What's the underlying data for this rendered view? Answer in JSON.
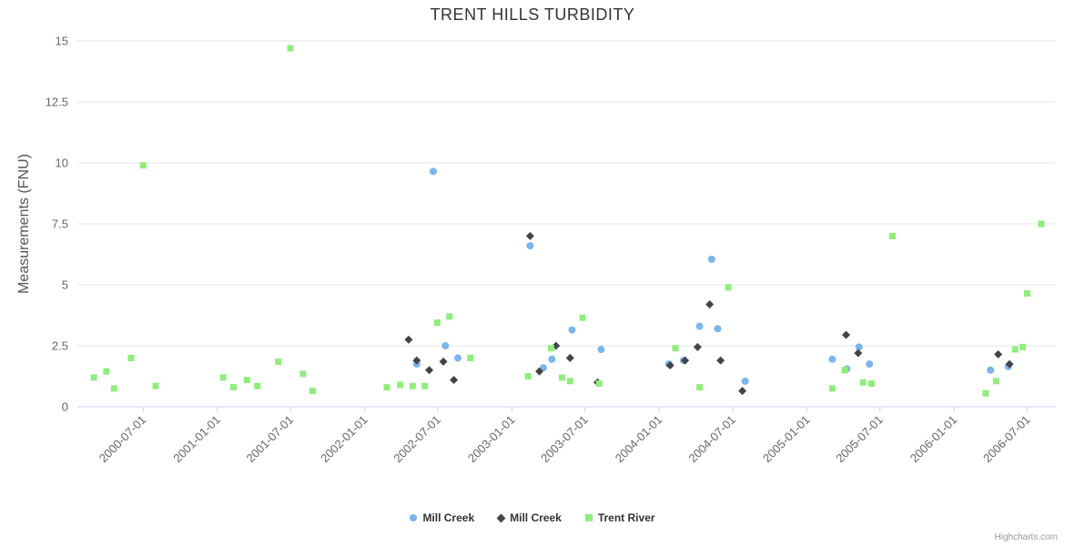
{
  "credit": "Highcharts.com",
  "chart_data": {
    "type": "scatter",
    "title": "TRENT HILLS TURBIDITY",
    "xlabel": "",
    "ylabel": "Measurements (FNU)",
    "ylim": [
      0,
      15
    ],
    "yticks": [
      0,
      2.5,
      5,
      7.5,
      10,
      12.5,
      15
    ],
    "ytick_labels": [
      "0",
      "2.5",
      "5",
      "7.5",
      "10",
      "12.5",
      "15"
    ],
    "xticks": [
      "2000-07-01",
      "2001-01-01",
      "2001-07-01",
      "2002-01-01",
      "2002-07-01",
      "2003-01-01",
      "2003-07-01",
      "2004-01-01",
      "2004-07-01",
      "2005-01-01",
      "2005-07-01",
      "2006-01-01",
      "2006-07-01"
    ],
    "x_domain": [
      "2000-01-20",
      "2006-09-10"
    ],
    "grid": true,
    "legend_position": "bottom",
    "colors": {
      "grid": "#e6e6e6",
      "axis": "#ccd6eb",
      "tick_text": "#666666",
      "title_text": "#333333",
      "credit_text": "#999999"
    },
    "series": [
      {
        "name": "Mill Creek",
        "marker": "circle",
        "color": "#7cb5ec",
        "points": [
          [
            "2002-05-10",
            1.75
          ],
          [
            "2002-06-20",
            9.65
          ],
          [
            "2002-07-20",
            2.5
          ],
          [
            "2002-08-20",
            2.0
          ],
          [
            "2003-02-15",
            6.6
          ],
          [
            "2003-03-20",
            1.6
          ],
          [
            "2003-04-10",
            1.95
          ],
          [
            "2003-05-30",
            3.15
          ],
          [
            "2003-08-10",
            2.35
          ],
          [
            "2004-01-25",
            1.75
          ],
          [
            "2004-03-01",
            1.9
          ],
          [
            "2004-04-10",
            3.3
          ],
          [
            "2004-05-10",
            6.05
          ],
          [
            "2004-05-25",
            3.2
          ],
          [
            "2004-08-01",
            1.05
          ],
          [
            "2005-03-05",
            1.95
          ],
          [
            "2005-04-10",
            1.55
          ],
          [
            "2005-05-10",
            2.45
          ],
          [
            "2005-06-05",
            1.75
          ],
          [
            "2006-04-01",
            1.5
          ],
          [
            "2006-05-15",
            1.65
          ]
        ]
      },
      {
        "name": "Mill Creek",
        "marker": "diamond",
        "color": "#434348",
        "points": [
          [
            "2002-04-20",
            2.75
          ],
          [
            "2002-05-10",
            1.9
          ],
          [
            "2002-06-10",
            1.5
          ],
          [
            "2002-07-15",
            1.85
          ],
          [
            "2002-08-10",
            1.1
          ],
          [
            "2003-02-15",
            7.0
          ],
          [
            "2003-03-10",
            1.45
          ],
          [
            "2003-04-20",
            2.5
          ],
          [
            "2003-05-25",
            2.0
          ],
          [
            "2003-08-01",
            1.0
          ],
          [
            "2004-01-28",
            1.7
          ],
          [
            "2004-03-05",
            1.9
          ],
          [
            "2004-04-05",
            2.45
          ],
          [
            "2004-05-05",
            4.2
          ],
          [
            "2004-06-01",
            1.9
          ],
          [
            "2004-07-25",
            0.65
          ],
          [
            "2005-04-08",
            2.95
          ],
          [
            "2005-05-08",
            2.2
          ],
          [
            "2006-04-20",
            2.15
          ],
          [
            "2006-05-18",
            1.75
          ]
        ]
      },
      {
        "name": "Trent River",
        "marker": "square",
        "color": "#90ed7d",
        "points": [
          [
            "2000-03-01",
            1.2
          ],
          [
            "2000-04-01",
            1.45
          ],
          [
            "2000-04-20",
            0.75
          ],
          [
            "2000-06-01",
            2.0
          ],
          [
            "2000-07-01",
            9.9
          ],
          [
            "2000-08-01",
            0.85
          ],
          [
            "2001-01-15",
            1.2
          ],
          [
            "2001-02-10",
            0.8
          ],
          [
            "2001-03-15",
            1.1
          ],
          [
            "2001-04-10",
            0.85
          ],
          [
            "2001-06-01",
            1.85
          ],
          [
            "2001-07-01",
            14.7
          ],
          [
            "2001-08-01",
            1.35
          ],
          [
            "2001-08-25",
            0.65
          ],
          [
            "2002-02-25",
            0.8
          ],
          [
            "2002-03-30",
            0.9
          ],
          [
            "2002-04-30",
            0.85
          ],
          [
            "2002-05-30",
            0.85
          ],
          [
            "2002-06-30",
            3.45
          ],
          [
            "2002-07-30",
            3.7
          ],
          [
            "2002-09-20",
            2.0
          ],
          [
            "2003-02-10",
            1.25
          ],
          [
            "2003-04-08",
            2.4
          ],
          [
            "2003-05-05",
            1.2
          ],
          [
            "2003-05-25",
            1.05
          ],
          [
            "2003-06-25",
            3.65
          ],
          [
            "2003-08-05",
            0.95
          ],
          [
            "2004-02-10",
            2.4
          ],
          [
            "2004-04-10",
            0.8
          ],
          [
            "2004-06-20",
            4.9
          ],
          [
            "2005-03-05",
            0.75
          ],
          [
            "2005-04-05",
            1.5
          ],
          [
            "2005-05-20",
            1.0
          ],
          [
            "2005-06-10",
            0.95
          ],
          [
            "2005-08-01",
            7.0
          ],
          [
            "2006-03-20",
            0.55
          ],
          [
            "2006-04-15",
            1.05
          ],
          [
            "2006-06-01",
            2.35
          ],
          [
            "2006-06-20",
            2.45
          ],
          [
            "2006-07-01",
            4.65
          ],
          [
            "2006-08-05",
            7.5
          ]
        ]
      }
    ]
  }
}
